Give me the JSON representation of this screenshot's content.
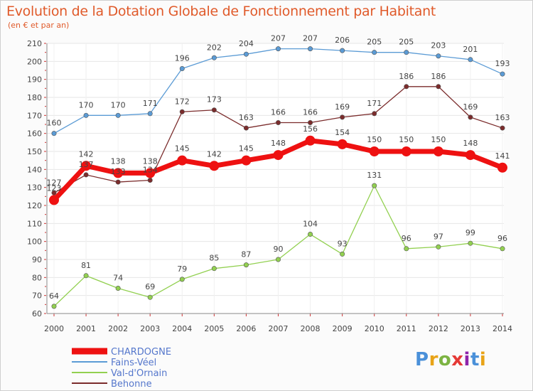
{
  "title": "Evolution de la Dotation Globale de Fonctionnement par Habitant",
  "subtitle": "(en € et par an)",
  "logo": "Proxiti",
  "chart_data": {
    "type": "line",
    "title": "Evolution de la Dotation Globale de Fonctionnement par Habitant",
    "subtitle": "(en € et par an)",
    "xlabel": "",
    "ylabel": "",
    "x": [
      2000,
      2001,
      2002,
      2003,
      2004,
      2005,
      2006,
      2007,
      2008,
      2009,
      2010,
      2011,
      2012,
      2013,
      2014
    ],
    "ylim": [
      60,
      210
    ],
    "yticks": [
      60,
      70,
      80,
      90,
      100,
      110,
      120,
      130,
      140,
      150,
      160,
      170,
      180,
      190,
      200,
      210
    ],
    "grid": true,
    "legend_position": "bottom-left",
    "series": [
      {
        "name": "Fains-Véel",
        "color": "#5b9bd5",
        "values": [
          160,
          170,
          170,
          171,
          196,
          202,
          204,
          207,
          207,
          206,
          205,
          205,
          203,
          201,
          193
        ]
      },
      {
        "name": "Val-d'Ornain",
        "color": "#92d050",
        "values": [
          64,
          81,
          74,
          69,
          79,
          85,
          87,
          90,
          104,
          93,
          131,
          96,
          97,
          99,
          96
        ]
      },
      {
        "name": "Behonne",
        "color": "#7b2c2c",
        "values": [
          127,
          137,
          133,
          134,
          172,
          173,
          163,
          166,
          166,
          169,
          171,
          186,
          186,
          169,
          163
        ]
      },
      {
        "name": "CHARDOGNE",
        "color": "#ee1111",
        "values": [
          123,
          142,
          138,
          138,
          145,
          142,
          145,
          148,
          156,
          154,
          150,
          150,
          150,
          148,
          141
        ]
      }
    ],
    "legend_order": [
      "CHARDOGNE",
      "Fains-Véel",
      "Val-d'Ornain",
      "Behonne"
    ]
  }
}
